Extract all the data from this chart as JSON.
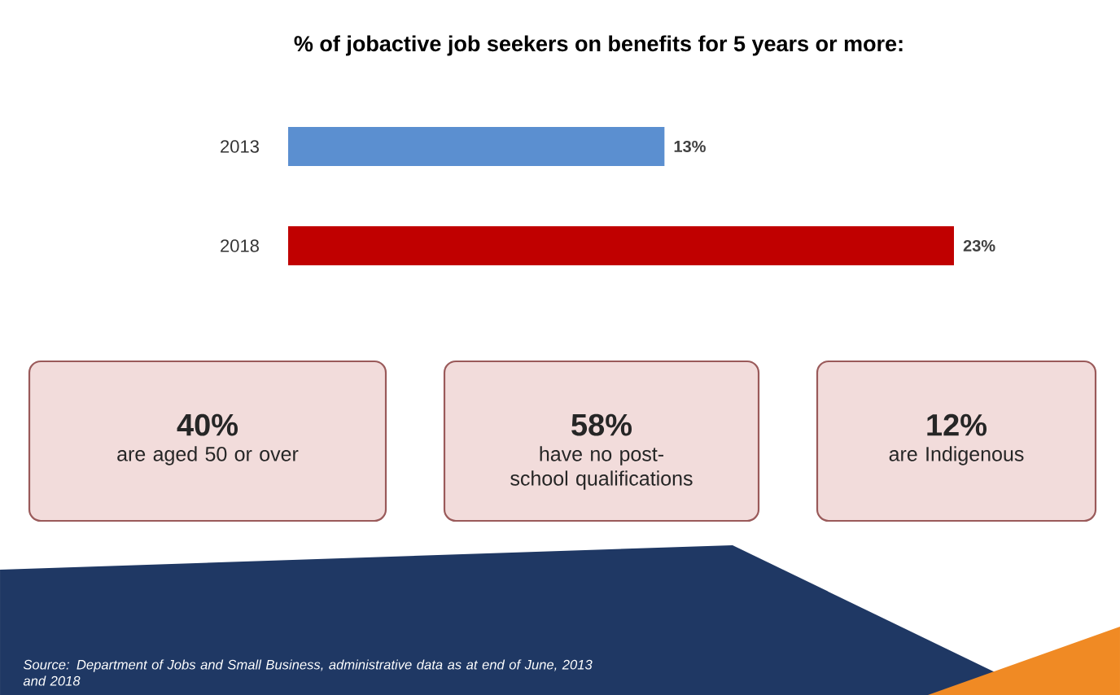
{
  "chart_data": [
    {
      "type": "bar",
      "orientation": "horizontal",
      "title": "% of jobactive job seekers on benefits for 5 years or more:",
      "categories": [
        "2013",
        "2018"
      ],
      "values": [
        13,
        23
      ],
      "colors": [
        "#5b8fd0",
        "#c00000"
      ],
      "value_labels": [
        "13%",
        "23%"
      ],
      "annotations": [
        "Source: Department of Jobs and Small Business, administrative data as at end of June, 2013 and 2018"
      ]
    },
    {
      "type": "other",
      "annotations": [
        "40%",
        "are aged 50 or over",
        "58%",
        "have no post-school qualifications",
        "12%",
        "are Indigenous"
      ]
    }
  ]
}
